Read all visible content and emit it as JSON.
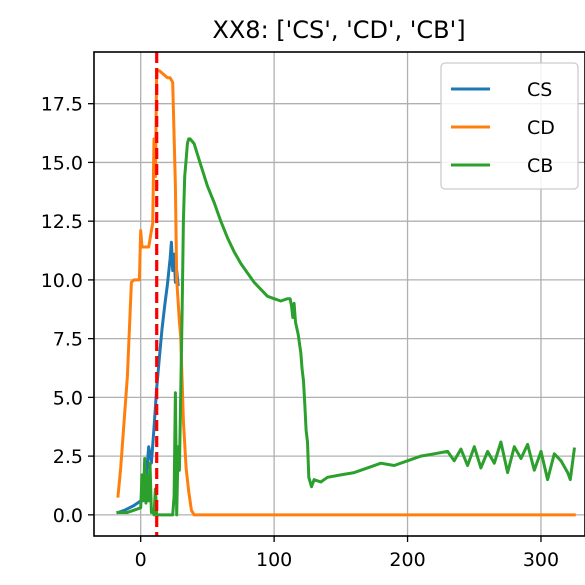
{
  "chart_data": {
    "type": "line",
    "title": "XX8: ['CS', 'CD', 'CB']",
    "xlabel": "",
    "ylabel": "",
    "xlim": [
      -35,
      333
    ],
    "ylim": [
      -0.9,
      19.7
    ],
    "xticks": [
      0,
      100,
      200,
      300
    ],
    "xtick_labels": [
      "0",
      "100",
      "200",
      "300"
    ],
    "yticks": [
      0.0,
      2.5,
      5.0,
      7.5,
      10.0,
      12.5,
      15.0,
      17.5
    ],
    "ytick_labels": [
      "0.0",
      "2.5",
      "5.0",
      "7.5",
      "10.0",
      "12.5",
      "15.0",
      "17.5"
    ],
    "grid": true,
    "legend_position": "top-right",
    "vline": {
      "x": 12,
      "color": "#ff0000",
      "style": "dashed"
    },
    "series": [
      {
        "name": "CS",
        "color": "#1f77b4",
        "x": [
          -17,
          -12,
          -5,
          0,
          2,
          4,
          6,
          8,
          10,
          12,
          14,
          16,
          18,
          20,
          22,
          23,
          24,
          25,
          26,
          27,
          28
        ],
        "y": [
          0.1,
          0.2,
          0.4,
          0.6,
          0.9,
          1.5,
          2.9,
          2.2,
          3.7,
          5.4,
          6.7,
          7.9,
          8.9,
          9.8,
          10.9,
          11.6,
          10.4,
          11.1,
          9.9,
          10.4,
          9.8
        ]
      },
      {
        "name": "CD",
        "color": "#ff7f0e",
        "x": [
          -17,
          -15,
          -10,
          -7,
          -5,
          -1,
          0,
          1,
          2,
          4,
          6,
          8,
          9,
          10,
          11,
          12,
          13,
          14,
          20,
          22,
          24,
          26,
          27,
          28,
          29,
          30,
          32,
          34,
          36,
          38,
          40,
          325
        ],
        "y": [
          0.8,
          2.0,
          5.9,
          9.9,
          10.0,
          10.0,
          12.1,
          11.4,
          11.4,
          11.4,
          11.4,
          12.1,
          12.4,
          16.0,
          14.4,
          18.9,
          18.9,
          18.9,
          18.6,
          18.6,
          18.4,
          14.0,
          10.0,
          9.1,
          8.2,
          7.6,
          4.0,
          2.0,
          1.0,
          0.2,
          0.0,
          0.0
        ]
      },
      {
        "name": "CB",
        "color": "#2ca02c",
        "x": [
          -17,
          -10,
          -5,
          0,
          1,
          2,
          3,
          4,
          5,
          6,
          7,
          8,
          9,
          10,
          11,
          12,
          13,
          14,
          20,
          22,
          24,
          25,
          26,
          27,
          28,
          29,
          30,
          31,
          32,
          33,
          34,
          35,
          36,
          37,
          40,
          45,
          50,
          55,
          60,
          65,
          70,
          75,
          80,
          85,
          90,
          95,
          100,
          105,
          110,
          112,
          113,
          114,
          115,
          116,
          118,
          120,
          121,
          122,
          123,
          124,
          125,
          126,
          128,
          130,
          135,
          140,
          150,
          160,
          170,
          180,
          190,
          200,
          210,
          220,
          230,
          235,
          240,
          245,
          250,
          255,
          260,
          265,
          270,
          275,
          280,
          285,
          290,
          295,
          300,
          305,
          310,
          315,
          320,
          322,
          325
        ],
        "y": [
          0.1,
          0.1,
          0.2,
          0.3,
          1.7,
          0.6,
          2.4,
          0.5,
          1.7,
          0.6,
          2.2,
          0.1,
          0.2,
          0.0,
          1.1,
          0.0,
          0.0,
          0.0,
          0.0,
          0.0,
          0.0,
          0.8,
          5.2,
          0.0,
          2.9,
          1.9,
          5.1,
          8.6,
          12.5,
          14.4,
          15.1,
          15.8,
          16.0,
          16.0,
          15.8,
          14.9,
          14.0,
          13.3,
          12.5,
          11.8,
          11.2,
          10.7,
          10.3,
          9.9,
          9.6,
          9.3,
          9.2,
          9.1,
          9.2,
          9.2,
          8.9,
          8.4,
          9.0,
          8.2,
          7.7,
          6.9,
          6.2,
          5.7,
          4.7,
          3.6,
          3.1,
          1.6,
          1.2,
          1.5,
          1.4,
          1.6,
          1.7,
          1.8,
          2.0,
          2.2,
          2.1,
          2.3,
          2.5,
          2.6,
          2.7,
          2.3,
          2.8,
          2.1,
          2.9,
          2.0,
          2.7,
          2.2,
          3.1,
          1.8,
          2.9,
          2.4,
          3.0,
          1.9,
          2.7,
          1.5,
          2.6,
          2.3,
          1.8,
          1.5,
          2.8
        ]
      }
    ]
  }
}
